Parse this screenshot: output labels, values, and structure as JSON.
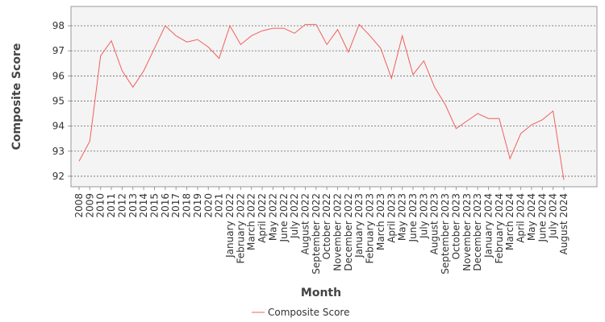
{
  "chart_data": {
    "type": "line",
    "x_label": "Month",
    "y_label": "Composite Score",
    "categories": [
      "2008",
      "2009",
      "2010",
      "2011",
      "2012",
      "2013",
      "2014",
      "2015",
      "2016",
      "2017",
      "2018",
      "2019",
      "2020",
      "2021",
      "January 2022",
      "February 2022",
      "March 2022",
      "April 2022",
      "May 2022",
      "June 2022",
      "July 2022",
      "August 2022",
      "September 2022",
      "October 2022",
      "November 2022",
      "December 2022",
      "January 2023",
      "February 2023",
      "March 2023",
      "April 2023",
      "May 2023",
      "June 2023",
      "July 2023",
      "August 2023",
      "September 2023",
      "October 2023",
      "November 2023",
      "December 2023",
      "January 2024",
      "February 2024",
      "March 2024",
      "April 2024",
      "May 2024",
      "June 2024",
      "July 2024",
      "August 2024"
    ],
    "series": [
      {
        "name": "Composite Score",
        "color": "#f25f5c",
        "values": [
          92.6,
          93.4,
          96.8,
          97.4,
          96.2,
          95.55,
          96.2,
          97.1,
          98.0,
          97.6,
          97.35,
          97.45,
          97.15,
          96.7,
          98.0,
          97.25,
          97.6,
          97.8,
          97.9,
          97.9,
          97.7,
          98.05,
          98.05,
          97.25,
          97.85,
          96.95,
          98.05,
          97.6,
          97.1,
          95.9,
          97.6,
          96.05,
          96.6,
          95.55,
          94.85,
          93.9,
          94.2,
          94.5,
          94.3,
          94.3,
          92.7,
          93.7,
          94.05,
          94.25,
          94.6,
          91.85
        ]
      }
    ],
    "ylim": [
      91.58,
      98.77
    ],
    "yticks": [
      92,
      93,
      94,
      95,
      96,
      97,
      98
    ],
    "grid": true,
    "legend": "bottom"
  }
}
